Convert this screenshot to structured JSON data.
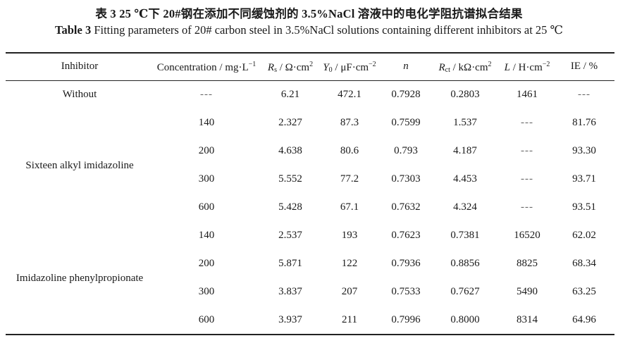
{
  "caption": {
    "cn": "表 3  25 ℃下 20#钢在添加不同缓蚀剂的 3.5%NaCl 溶液中的电化学阻抗谱拟合结果",
    "en_label": "Table 3",
    "en_text": "Fitting parameters of 20# carbon steel in 3.5%NaCl solutions containing different inhibitors at 25 ℃"
  },
  "headers": {
    "inhibitor": "Inhibitor",
    "concentration": "Concentration / mg·L",
    "concentration_sup": "−1",
    "rs_sym": "R",
    "rs_sub": "s",
    "rs_unit": " / Ω·cm",
    "rs_sup": "2",
    "y0_sym": "Y",
    "y0_sub": "0",
    "y0_unit": " / μF·cm",
    "y0_sup": "−2",
    "n": "n",
    "rct_sym": "R",
    "rct_sub": "ct",
    "rct_unit": " / kΩ·cm",
    "rct_sup": "2",
    "l_sym": "L",
    "l_unit": " / H·cm",
    "l_sup": "−2",
    "ie": "IE / %"
  },
  "groups": {
    "without": "Without",
    "sixteen": "Sixteen alkyl imidazoline",
    "phenyl": "Imidazoline phenylpropionate"
  },
  "rows": [
    {
      "conc": "---",
      "rs": "6.21",
      "y0": "472.1",
      "n": "0.7928",
      "rct": "0.2803",
      "l": "1461",
      "ie": "---"
    },
    {
      "conc": "140",
      "rs": "2.327",
      "y0": "87.3",
      "n": "0.7599",
      "rct": "1.537",
      "l": "---",
      "ie": "81.76"
    },
    {
      "conc": "200",
      "rs": "4.638",
      "y0": "80.6",
      "n": "0.793",
      "rct": "4.187",
      "l": "---",
      "ie": "93.30"
    },
    {
      "conc": "300",
      "rs": "5.552",
      "y0": "77.2",
      "n": "0.7303",
      "rct": "4.453",
      "l": "---",
      "ie": "93.71"
    },
    {
      "conc": "600",
      "rs": "5.428",
      "y0": "67.1",
      "n": "0.7632",
      "rct": "4.324",
      "l": "---",
      "ie": "93.51"
    },
    {
      "conc": "140",
      "rs": "2.537",
      "y0": "193",
      "n": "0.7623",
      "rct": "0.7381",
      "l": "16520",
      "ie": "62.02"
    },
    {
      "conc": "200",
      "rs": "5.871",
      "y0": "122",
      "n": "0.7936",
      "rct": "0.8856",
      "l": "8825",
      "ie": "68.34"
    },
    {
      "conc": "300",
      "rs": "3.837",
      "y0": "207",
      "n": "0.7533",
      "rct": "0.7627",
      "l": "5490",
      "ie": "63.25"
    },
    {
      "conc": "600",
      "rs": "3.937",
      "y0": "211",
      "n": "0.7996",
      "rct": "0.8000",
      "l": "8314",
      "ie": "64.96"
    }
  ]
}
